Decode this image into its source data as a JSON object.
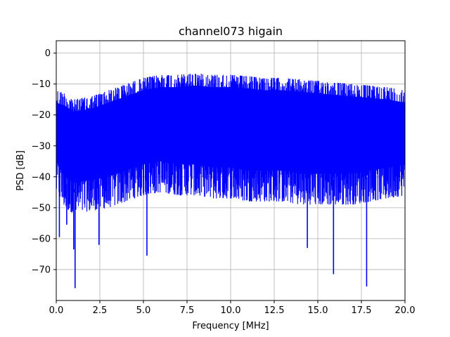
{
  "chart_data": {
    "type": "line",
    "title": "channel073 higain",
    "xlabel": "Frequency [MHz]",
    "ylabel": "PSD [dB]",
    "xlim": [
      0,
      20
    ],
    "ylim": [
      -80,
      4
    ],
    "xticks": [
      0,
      2.5,
      5,
      7.5,
      10,
      12.5,
      15,
      17.5,
      20
    ],
    "xtick_labels": [
      "0.0",
      "2.5",
      "5.0",
      "7.5",
      "10.0",
      "12.5",
      "15.0",
      "17.5",
      "20.0"
    ],
    "yticks": [
      0,
      -10,
      -20,
      -30,
      -40,
      -50,
      -60,
      -70
    ],
    "ytick_labels": [
      "0",
      "−10",
      "−20",
      "−30",
      "−40",
      "−50",
      "−60",
      "−70"
    ],
    "grid": true,
    "series": [
      {
        "color": "#0000ff",
        "envelope": {
          "x": [
            0,
            0.5,
            1,
            2,
            3,
            4,
            5,
            6,
            7,
            8,
            9,
            10,
            11,
            12,
            13,
            14,
            15,
            16,
            17,
            18,
            19,
            20
          ],
          "upper": [
            -12,
            -13,
            -15,
            -14,
            -12,
            -10,
            -8,
            -7,
            -7,
            -6.5,
            -7,
            -7,
            -7.5,
            -8,
            -8,
            -8.5,
            -9,
            -9.5,
            -10,
            -10.5,
            -11,
            -12
          ],
          "lower": [
            -45,
            -50,
            -52,
            -51,
            -50,
            -48,
            -46,
            -45,
            -46,
            -46,
            -47,
            -47,
            -48,
            -48,
            -48,
            -49,
            -49,
            -49,
            -49,
            -48,
            -47,
            -46
          ]
        },
        "spikes": [
          {
            "x": 0.18,
            "y": -59.5
          },
          {
            "x": 0.6,
            "y": -55.5
          },
          {
            "x": 1.0,
            "y": -63.5
          },
          {
            "x": 1.08,
            "y": -76
          },
          {
            "x": 2.45,
            "y": -62
          },
          {
            "x": 5.2,
            "y": -65.5
          },
          {
            "x": 14.4,
            "y": -63
          },
          {
            "x": 15.9,
            "y": -71.5
          },
          {
            "x": 17.8,
            "y": -75.5
          }
        ]
      }
    ]
  }
}
